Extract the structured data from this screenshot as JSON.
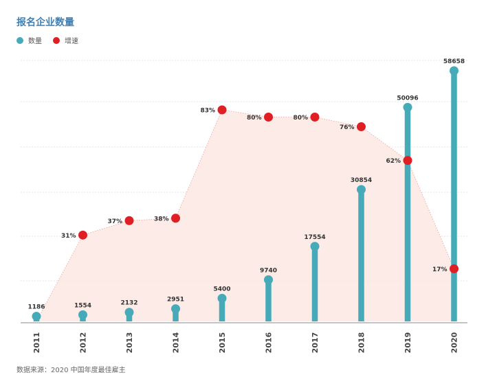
{
  "chart_data": {
    "type": "bar",
    "title": "报名企业数量",
    "legend": [
      {
        "name": "数量",
        "color": "#46aab9"
      },
      {
        "name": "增速",
        "color": "#e01f25"
      }
    ],
    "categories": [
      "2011",
      "2012",
      "2013",
      "2014",
      "2015",
      "2016",
      "2017",
      "2018",
      "2019",
      "2020"
    ],
    "series": [
      {
        "name": "数量",
        "type": "bar",
        "values": [
          1186,
          1554,
          2132,
          2951,
          5400,
          9740,
          17554,
          30854,
          50096,
          58658
        ]
      },
      {
        "name": "增速",
        "type": "area",
        "values": [
          null,
          31,
          37,
          38,
          83,
          80,
          80,
          76,
          62,
          17
        ],
        "labels": [
          "",
          "31%",
          "37%",
          "38%",
          "83%",
          "80%",
          "80%",
          "76%",
          "62%",
          "17%"
        ]
      }
    ],
    "source": "数据来源：2020 中国年度最佳雇主"
  }
}
